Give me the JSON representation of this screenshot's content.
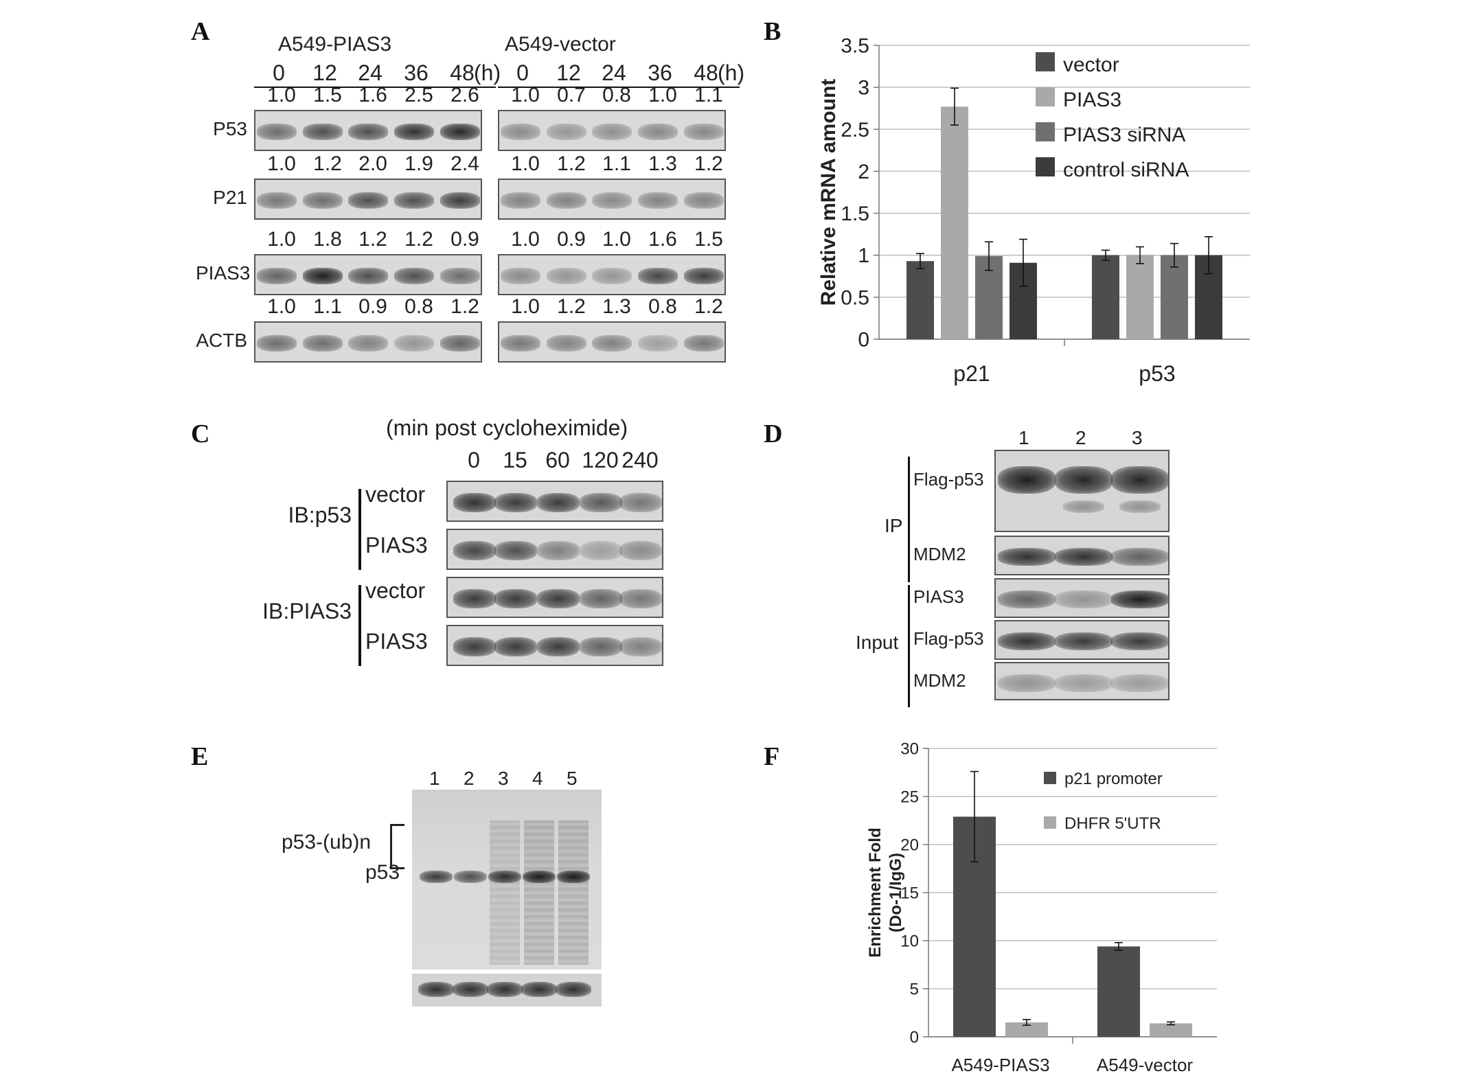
{
  "panel_labels": [
    "A",
    "B",
    "C",
    "D",
    "E",
    "F"
  ],
  "panelA": {
    "groups": [
      {
        "title": "A549-PIAS3",
        "times": [
          "0",
          "12",
          "24",
          "36",
          "48"
        ],
        "unit": "(h)",
        "rows": [
          {
            "name": "P53",
            "values": [
              "1.0",
              "1.5",
              "1.6",
              "2.5",
              "2.6"
            ]
          },
          {
            "name": "P21",
            "values": [
              "1.0",
              "1.2",
              "2.0",
              "1.9",
              "2.4"
            ]
          },
          {
            "name": "PIAS3",
            "values": [
              "1.0",
              "1.8",
              "1.2",
              "1.2",
              "0.9"
            ]
          },
          {
            "name": "ACTB",
            "values": [
              "1.0",
              "1.1",
              "0.9",
              "0.8",
              "1.2"
            ]
          }
        ]
      },
      {
        "title": "A549-vector",
        "times": [
          "0",
          "12",
          "24",
          "36",
          "48"
        ],
        "unit": "(h)",
        "rows": [
          {
            "name": "P53",
            "values": [
              "1.0",
              "0.7",
              "0.8",
              "1.0",
              "1.1"
            ]
          },
          {
            "name": "P21",
            "values": [
              "1.0",
              "1.2",
              "1.1",
              "1.3",
              "1.2"
            ]
          },
          {
            "name": "PIAS3",
            "values": [
              "1.0",
              "0.9",
              "1.0",
              "1.6",
              "1.5"
            ]
          },
          {
            "name": "ACTB",
            "values": [
              "1.0",
              "1.2",
              "1.3",
              "0.8",
              "1.2"
            ]
          }
        ]
      }
    ]
  },
  "panelC": {
    "title": "(min post cycloheximide)",
    "times": [
      "0",
      "15",
      "60",
      "120",
      "240"
    ],
    "groups": [
      {
        "label": "IB:p53",
        "rows": [
          "vector",
          "PIAS3"
        ]
      },
      {
        "label": "IB:PIAS3",
        "rows": [
          "vector",
          "PIAS3"
        ]
      }
    ]
  },
  "panelD": {
    "lanes": [
      "1",
      "2",
      "3"
    ],
    "groups": [
      {
        "label": "IP",
        "rows": [
          "Flag-p53",
          "MDM2"
        ]
      },
      {
        "label": "Input",
        "rows": [
          "PIAS3",
          "Flag-p53",
          "MDM2"
        ]
      }
    ]
  },
  "panelE": {
    "lanes": [
      "1",
      "2",
      "3",
      "4",
      "5"
    ],
    "labels": {
      "ub": "p53-(ub)n",
      "p53": "p53"
    }
  },
  "chart_data": [
    {
      "panel": "B",
      "type": "bar",
      "title": "",
      "xlabel": "",
      "ylabel": "Relative mRNA amount",
      "ylim": [
        0,
        3.5
      ],
      "yticks": [
        "0",
        "0.5",
        "1",
        "1.5",
        "2",
        "2.5",
        "3",
        "3.5"
      ],
      "grid": true,
      "legend_position": "top-right",
      "categories": [
        "p21",
        "p53"
      ],
      "series": [
        {
          "name": "vector",
          "color": "#4d4d4d",
          "values": [
            0.93,
            1.0
          ],
          "errors": [
            0.09,
            0.06
          ]
        },
        {
          "name": "PIAS3",
          "color": "#a9a9a9",
          "values": [
            2.77,
            1.0
          ],
          "errors": [
            0.22,
            0.1
          ]
        },
        {
          "name": "PIAS3 siRNA",
          "color": "#707070",
          "values": [
            0.99,
            1.0
          ],
          "errors": [
            0.17,
            0.14
          ]
        },
        {
          "name": "control siRNA",
          "color": "#3b3b3b",
          "values": [
            0.91,
            1.0
          ],
          "errors": [
            0.28,
            0.22
          ]
        }
      ]
    },
    {
      "panel": "F",
      "type": "bar",
      "title": "",
      "xlabel": "",
      "ylabel": "Enrichment Fold (Do-1/IgG)",
      "ylabel_lines": [
        "Enrichment Fold",
        "(Do-1/IgG)"
      ],
      "ylim": [
        0,
        30
      ],
      "yticks": [
        "0",
        "5",
        "10",
        "15",
        "20",
        "25",
        "30"
      ],
      "grid": true,
      "legend_position": "top-right",
      "categories": [
        "A549-PIAS3",
        "A549-vector"
      ],
      "series": [
        {
          "name": "p21 promoter",
          "color": "#4d4d4d",
          "values": [
            22.9,
            9.4
          ],
          "errors": [
            4.7,
            0.4
          ]
        },
        {
          "name": "DHFR 5'UTR",
          "color": "#a9a9a9",
          "values": [
            1.5,
            1.4
          ],
          "errors": [
            0.3,
            0.15
          ]
        }
      ]
    }
  ]
}
